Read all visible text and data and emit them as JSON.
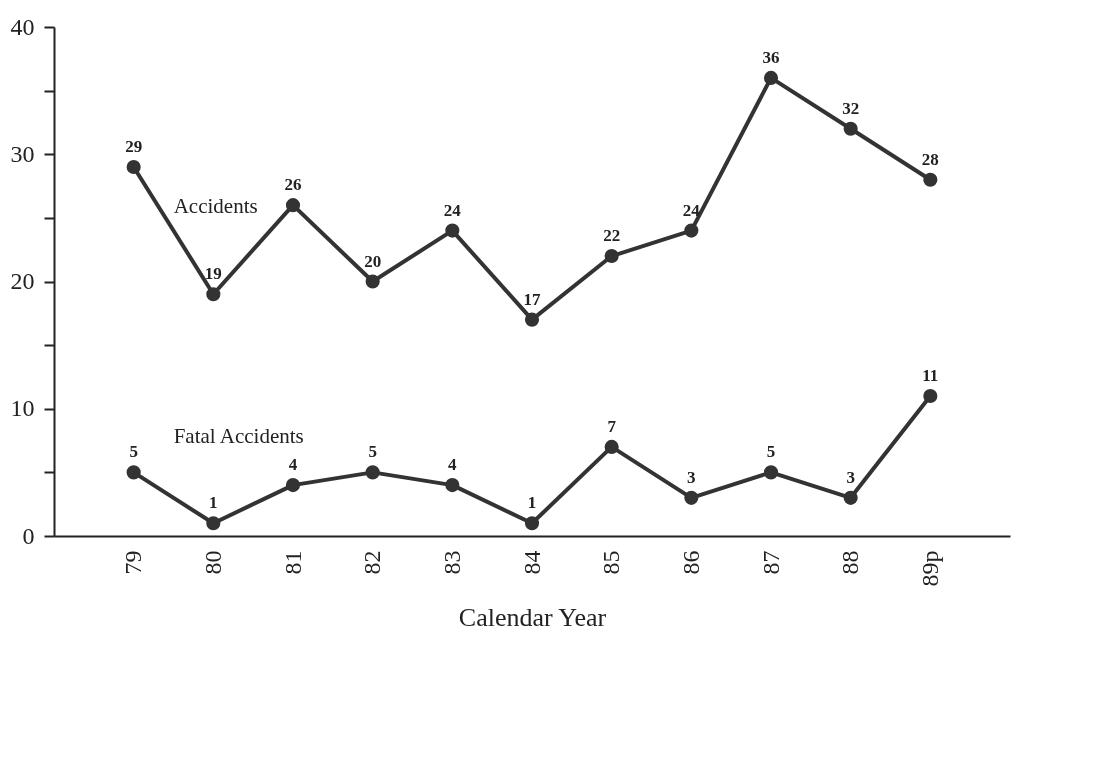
{
  "chart_data": {
    "type": "line",
    "xlabel": "Calendar Year",
    "categories": [
      "79",
      "80",
      "81",
      "82",
      "83",
      "84",
      "85",
      "86",
      "87",
      "88",
      "89p"
    ],
    "series": [
      {
        "name": "Accidents",
        "color": "#333333",
        "values": [
          29,
          19,
          26,
          20,
          24,
          17,
          22,
          24,
          36,
          32,
          28
        ]
      },
      {
        "name": "Fatal Accidents",
        "color": "#333333",
        "values": [
          5,
          1,
          4,
          5,
          4,
          1,
          7,
          3,
          5,
          3,
          11
        ]
      }
    ],
    "ylim": [
      0,
      40
    ],
    "yticks": [
      0,
      {
        "value": 5,
        "label": null
      },
      10,
      {
        "value": 15,
        "label": null
      },
      20,
      {
        "value": 25,
        "label": null
      },
      30,
      {
        "value": 35,
        "label": null
      },
      40
    ],
    "data_labels": true,
    "marker": "circle",
    "line_style": "solid"
  }
}
